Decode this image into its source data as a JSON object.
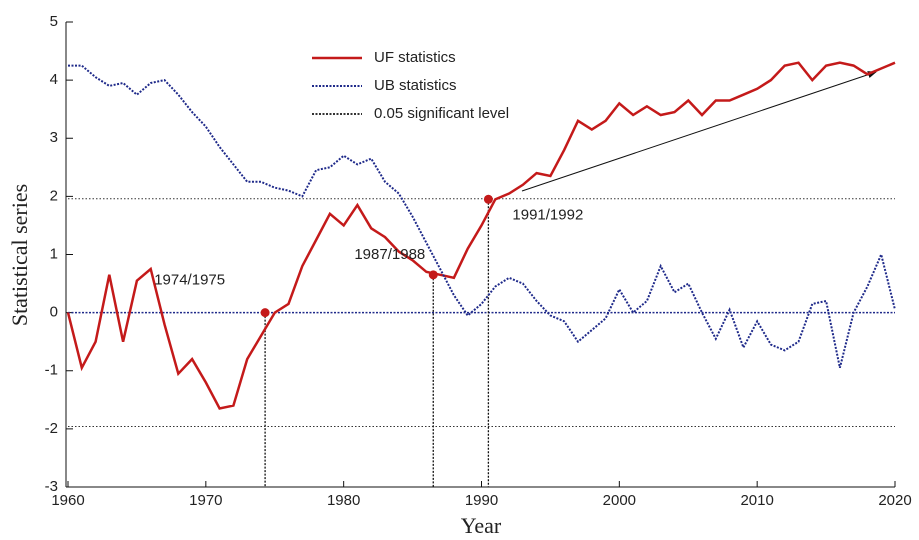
{
  "chart_data": {
    "type": "line",
    "xlabel": "Year",
    "ylabel": "Statistical series",
    "x": [
      1960,
      1961,
      1962,
      1963,
      1964,
      1965,
      1966,
      1967,
      1968,
      1969,
      1970,
      1971,
      1972,
      1973,
      1974,
      1975,
      1976,
      1977,
      1978,
      1979,
      1980,
      1981,
      1982,
      1983,
      1984,
      1985,
      1986,
      1987,
      1988,
      1989,
      1990,
      1991,
      1992,
      1993,
      1994,
      1995,
      1996,
      1997,
      1998,
      1999,
      2000,
      2001,
      2002,
      2003,
      2004,
      2005,
      2006,
      2007,
      2008,
      2009,
      2010,
      2011,
      2012,
      2013,
      2014,
      2015,
      2016,
      2017,
      2018,
      2019,
      2020
    ],
    "series": [
      {
        "name": "UF statistics",
        "color": "#c41a1a",
        "style": "solid",
        "values": [
          0,
          -0.95,
          -0.5,
          0.65,
          -0.5,
          0.55,
          0.75,
          -0.2,
          -1.05,
          -0.8,
          -1.2,
          -1.65,
          -1.6,
          -0.8,
          -0.4,
          0,
          0.15,
          0.8,
          1.25,
          1.7,
          1.5,
          1.85,
          1.45,
          1.3,
          1.05,
          0.9,
          0.7,
          0.65,
          0.6,
          1.1,
          1.5,
          1.95,
          2.05,
          2.2,
          2.4,
          2.35,
          2.8,
          3.3,
          3.15,
          3.3,
          3.6,
          3.4,
          3.55,
          3.4,
          3.45,
          3.65,
          3.4,
          3.65,
          3.65,
          3.75,
          3.85,
          4.0,
          4.25,
          4.3,
          4.0,
          4.25,
          4.3,
          4.25,
          4.1,
          4.2,
          4.3
        ]
      },
      {
        "name": "UB statistics",
        "color": "#1f2a8a",
        "style": "dotted",
        "values": [
          4.25,
          4.25,
          4.05,
          3.9,
          3.95,
          3.75,
          3.95,
          4.0,
          3.75,
          3.45,
          3.2,
          2.85,
          2.55,
          2.25,
          2.25,
          2.15,
          2.1,
          2.0,
          2.45,
          2.5,
          2.7,
          2.55,
          2.65,
          2.25,
          2.05,
          1.65,
          1.2,
          0.75,
          0.3,
          -0.05,
          0.15,
          0.45,
          0.6,
          0.5,
          0.2,
          -0.05,
          -0.15,
          -0.5,
          -0.3,
          -0.1,
          0.4,
          0.0,
          0.2,
          0.8,
          0.35,
          0.5,
          0.0,
          -0.45,
          0.05,
          -0.6,
          -0.15,
          -0.55,
          -0.65,
          -0.5,
          0.15,
          0.2,
          -0.95,
          0.0,
          0.45,
          1.0,
          0.05
        ]
      }
    ],
    "significance": {
      "name": "0.05 significant level",
      "color": "#333",
      "levels": [
        1.96,
        -1.96
      ]
    },
    "change_points": [
      {
        "x": 1974.3,
        "y": 0,
        "label": "1974/1975"
      },
      {
        "x": 1986.5,
        "y": 0.65,
        "label": "1987/1988"
      },
      {
        "x": 1990.5,
        "y": 1.95,
        "label": "1991/1992"
      }
    ],
    "xlim": [
      1960,
      2020
    ],
    "xticks": [
      1960,
      1970,
      1980,
      1990,
      2000,
      2010,
      2020
    ],
    "ylim": [
      -3,
      5
    ],
    "yticks": [
      -3,
      -2,
      -1,
      0,
      1,
      2,
      3,
      4,
      5
    ]
  }
}
